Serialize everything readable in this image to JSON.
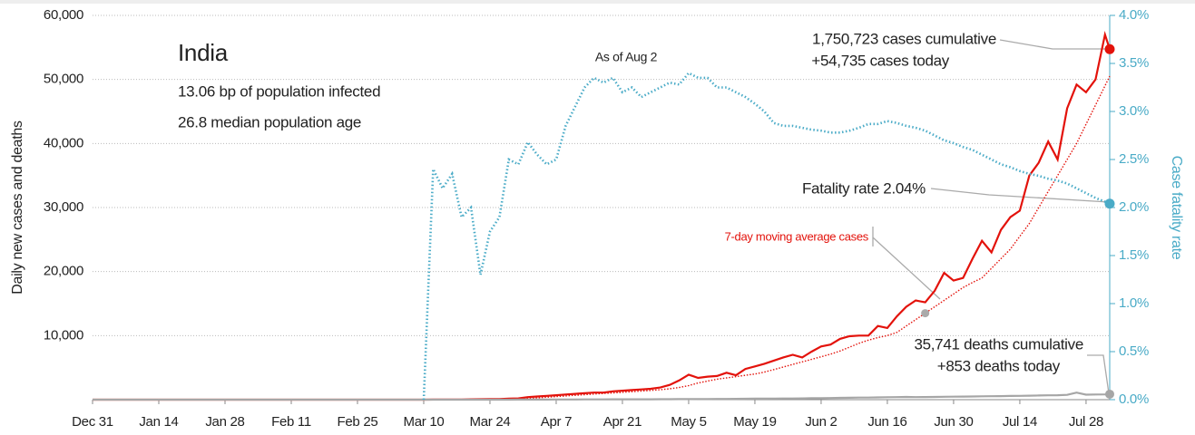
{
  "chart_data": {
    "type": "line",
    "title": "India",
    "subtitle": [
      "13.06 bp of population infected",
      "26.8 median population age"
    ],
    "annotations": [
      "As of Aug 2",
      "1,750,723 cases cumulative",
      "+54,735 cases today",
      "Fatality rate 2.04%",
      "35,741 deaths cumulative",
      "+853 deaths today"
    ],
    "ylabel": "Daily new cases and deaths",
    "y2label": "Case fatality rate",
    "x": [
      0,
      30,
      60,
      70,
      72,
      74,
      76,
      78,
      80,
      82,
      84,
      86,
      88,
      90,
      92,
      94,
      96,
      98,
      100,
      102,
      104,
      106,
      108,
      110,
      112,
      114,
      116,
      118,
      120,
      122,
      124,
      126,
      128,
      130,
      132,
      134,
      136,
      138,
      140,
      142,
      144,
      146,
      148,
      150,
      152,
      154,
      156,
      158,
      160,
      162,
      164,
      166,
      168,
      170,
      172,
      174,
      176,
      178,
      180,
      182,
      184,
      186,
      188,
      190,
      192,
      194,
      196,
      198,
      200,
      202,
      204,
      206,
      208,
      210,
      212,
      214,
      215
    ],
    "xlim": [
      0,
      215
    ],
    "xticks": [
      {
        "value": 0,
        "label": "Dec 31"
      },
      {
        "value": 14,
        "label": "Jan 14"
      },
      {
        "value": 28,
        "label": "Jan 28"
      },
      {
        "value": 42,
        "label": "Feb 11"
      },
      {
        "value": 56,
        "label": "Feb 25"
      },
      {
        "value": 70,
        "label": "Mar 10"
      },
      {
        "value": 84,
        "label": "Mar 24"
      },
      {
        "value": 98,
        "label": "Apr 7"
      },
      {
        "value": 112,
        "label": "Apr 21"
      },
      {
        "value": 126,
        "label": "May 5"
      },
      {
        "value": 140,
        "label": "May 19"
      },
      {
        "value": 154,
        "label": "Jun 2"
      },
      {
        "value": 168,
        "label": "Jun 16"
      },
      {
        "value": 182,
        "label": "Jun 30"
      },
      {
        "value": 196,
        "label": "Jul 14"
      },
      {
        "value": 210,
        "label": "Jul 28"
      }
    ],
    "ylim": [
      0,
      60000
    ],
    "yticks": [
      {
        "value": 10000,
        "label": "10,000"
      },
      {
        "value": 20000,
        "label": "20,000"
      },
      {
        "value": 30000,
        "label": "30,000"
      },
      {
        "value": 40000,
        "label": "40,000"
      },
      {
        "value": 50000,
        "label": "50,000"
      },
      {
        "value": 60000,
        "label": "60,000"
      }
    ],
    "y2lim": [
      0,
      4
    ],
    "y2ticks": [
      {
        "value": 0,
        "label": "0.0%"
      },
      {
        "value": 0.5,
        "label": "0.5%"
      },
      {
        "value": 1,
        "label": "1.0%"
      },
      {
        "value": 1.5,
        "label": "1.5%"
      },
      {
        "value": 2,
        "label": "2.0%"
      },
      {
        "value": 2.5,
        "label": "2.5%"
      },
      {
        "value": 3,
        "label": "3.0%"
      },
      {
        "value": 3.5,
        "label": "3.5%"
      },
      {
        "value": 4,
        "label": "4.0%"
      }
    ],
    "grid": true,
    "series": [
      {
        "color": "#e3120b",
        "style": "solid",
        "values": [
          0,
          0,
          0,
          5,
          10,
          15,
          20,
          30,
          50,
          70,
          90,
          100,
          150,
          200,
          400,
          500,
          600,
          700,
          800,
          900,
          1000,
          1100,
          1100,
          1300,
          1400,
          1500,
          1600,
          1700,
          1900,
          2300,
          3000,
          3900,
          3400,
          3600,
          3700,
          4200,
          3800,
          4800,
          5200,
          5600,
          6100,
          6600,
          7000,
          6600,
          7500,
          8300,
          8600,
          9500,
          9900,
          10000,
          10000,
          11500,
          11200,
          13000,
          14500,
          15500,
          15200,
          17000,
          19800,
          18600,
          19000,
          22000,
          24800,
          23000,
          26500,
          28500,
          29500,
          35000,
          37000,
          40300,
          37500,
          45500,
          49200,
          48000,
          50000,
          57000,
          54735
        ]
      },
      {
        "name": "7-day moving average cases",
        "color": "#e3120b",
        "style": "dotted",
        "values": [
          0,
          0,
          0,
          2,
          5,
          8,
          12,
          18,
          25,
          40,
          55,
          70,
          90,
          120,
          180,
          270,
          380,
          480,
          580,
          680,
          780,
          880,
          980,
          1050,
          1150,
          1250,
          1350,
          1450,
          1550,
          1700,
          1900,
          2200,
          2600,
          2900,
          3200,
          3400,
          3600,
          3800,
          4000,
          4300,
          4700,
          5100,
          5500,
          5900,
          6300,
          6700,
          7100,
          7600,
          8200,
          8800,
          9300,
          9700,
          10000,
          10500,
          11500,
          12500,
          13500,
          14500,
          15500,
          16500,
          17500,
          18300,
          19000,
          20500,
          22000,
          23500,
          25500,
          27500,
          30000,
          32500,
          35000,
          37500,
          40000,
          43000,
          46000,
          49000,
          50500
        ]
      },
      {
        "color": "#a6a6a6",
        "style": "solid",
        "values": [
          0,
          0,
          0,
          0,
          0,
          0,
          1,
          2,
          2,
          3,
          4,
          5,
          7,
          9,
          12,
          15,
          20,
          25,
          30,
          35,
          40,
          40,
          45,
          50,
          50,
          55,
          55,
          60,
          65,
          70,
          80,
          90,
          100,
          100,
          110,
          120,
          130,
          140,
          150,
          160,
          170,
          180,
          190,
          200,
          220,
          230,
          260,
          280,
          300,
          320,
          330,
          350,
          380,
          400,
          420,
          400,
          410,
          430,
          450,
          460,
          480,
          500,
          520,
          540,
          550,
          580,
          600,
          620,
          650,
          680,
          700,
          750,
          1100,
          780,
          800,
          820,
          853
        ]
      },
      {
        "color": "#4aabc7",
        "style": "dotted",
        "axis": "y2",
        "values": [
          null,
          null,
          null,
          0,
          2.4,
          2.2,
          2.35,
          1.9,
          2.0,
          1.3,
          1.75,
          1.9,
          2.5,
          2.45,
          2.68,
          2.55,
          2.45,
          2.5,
          2.85,
          3.05,
          3.25,
          3.35,
          3.3,
          3.35,
          3.2,
          3.25,
          3.15,
          3.2,
          3.25,
          3.3,
          3.28,
          3.4,
          3.35,
          3.35,
          3.25,
          3.25,
          3.2,
          3.15,
          3.08,
          3.0,
          2.88,
          2.85,
          2.85,
          2.83,
          2.81,
          2.8,
          2.78,
          2.78,
          2.8,
          2.83,
          2.87,
          2.87,
          2.9,
          2.88,
          2.85,
          2.83,
          2.8,
          2.75,
          2.7,
          2.67,
          2.63,
          2.6,
          2.55,
          2.5,
          2.45,
          2.42,
          2.38,
          2.35,
          2.33,
          2.3,
          2.28,
          2.25,
          2.2,
          2.15,
          2.1,
          2.06,
          2.04
        ]
      }
    ]
  }
}
